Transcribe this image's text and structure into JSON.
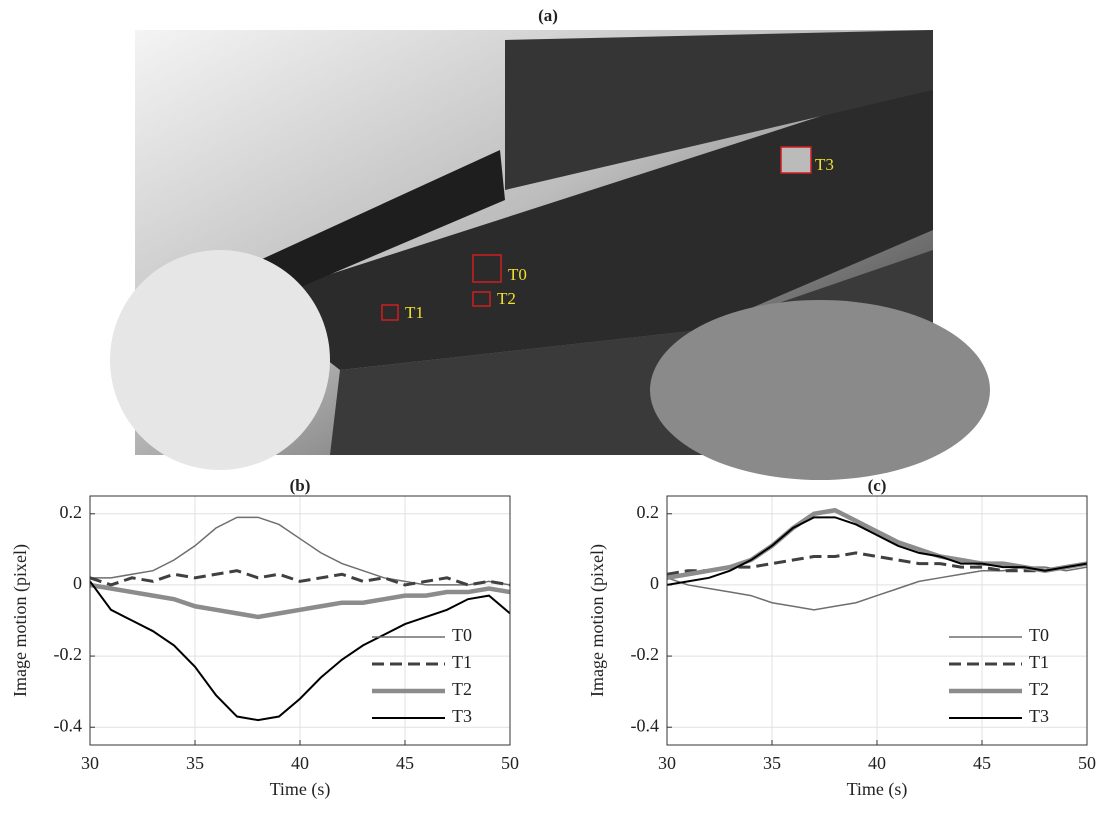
{
  "photo": {
    "title": "(a)",
    "targets": [
      "T0",
      "T1",
      "T2",
      "T3"
    ]
  },
  "chart_data": [
    {
      "type": "line",
      "title": "(b)",
      "xlabel": "Time (s)",
      "ylabel": "Image motion (pixel)",
      "x": [
        30,
        31,
        32,
        33,
        34,
        35,
        36,
        37,
        38,
        39,
        40,
        41,
        42,
        43,
        44,
        45,
        46,
        47,
        48,
        49,
        50
      ],
      "xlim": [
        30,
        50
      ],
      "xticks": [
        30,
        35,
        40,
        45,
        50
      ],
      "ylim": [
        -0.45,
        0.25
      ],
      "yticks": [
        -0.4,
        -0.2,
        0,
        0.2
      ],
      "grid": true,
      "legend": "lower right",
      "series": [
        {
          "name": "T0",
          "color": "#6e6e6e",
          "width": 1.5,
          "dash": false,
          "values": [
            0.02,
            0.02,
            0.03,
            0.04,
            0.07,
            0.11,
            0.16,
            0.19,
            0.19,
            0.17,
            0.13,
            0.09,
            0.06,
            0.04,
            0.02,
            0.01,
            0,
            0,
            0,
            0.01,
            0
          ]
        },
        {
          "name": "T1",
          "color": "#404040",
          "width": 3,
          "dash": true,
          "values": [
            0.02,
            0,
            0.02,
            0.01,
            0.03,
            0.02,
            0.03,
            0.04,
            0.02,
            0.03,
            0.01,
            0.02,
            0.03,
            0.01,
            0.02,
            0,
            0.01,
            0.02,
            0,
            0.01,
            0
          ]
        },
        {
          "name": "T2",
          "color": "#8c8c8c",
          "width": 4.5,
          "dash": false,
          "values": [
            0,
            -0.01,
            -0.02,
            -0.03,
            -0.04,
            -0.06,
            -0.07,
            -0.08,
            -0.09,
            -0.08,
            -0.07,
            -0.06,
            -0.05,
            -0.05,
            -0.04,
            -0.03,
            -0.03,
            -0.02,
            -0.02,
            -0.01,
            -0.02
          ]
        },
        {
          "name": "T3",
          "color": "#000000",
          "width": 2,
          "dash": false,
          "values": [
            0.01,
            -0.07,
            -0.1,
            -0.13,
            -0.17,
            -0.23,
            -0.31,
            -0.37,
            -0.38,
            -0.37,
            -0.32,
            -0.26,
            -0.21,
            -0.17,
            -0.14,
            -0.11,
            -0.09,
            -0.07,
            -0.04,
            -0.03,
            -0.08
          ]
        }
      ]
    },
    {
      "type": "line",
      "title": "(c)",
      "xlabel": "Time (s)",
      "ylabel": "Image motion (pixel)",
      "x": [
        30,
        31,
        32,
        33,
        34,
        35,
        36,
        37,
        38,
        39,
        40,
        41,
        42,
        43,
        44,
        45,
        46,
        47,
        48,
        49,
        50
      ],
      "xlim": [
        30,
        50
      ],
      "xticks": [
        30,
        35,
        40,
        45,
        50
      ],
      "ylim": [
        -0.45,
        0.25
      ],
      "yticks": [
        -0.4,
        -0.2,
        0,
        0.2
      ],
      "grid": true,
      "legend": "lower right",
      "series": [
        {
          "name": "T0",
          "color": "#6e6e6e",
          "width": 1.5,
          "dash": false,
          "values": [
            0.02,
            0,
            -0.01,
            -0.02,
            -0.03,
            -0.05,
            -0.06,
            -0.07,
            -0.06,
            -0.05,
            -0.03,
            -0.01,
            0.01,
            0.02,
            0.03,
            0.04,
            0.04,
            0.05,
            0.05,
            0.04,
            0.05
          ]
        },
        {
          "name": "T1",
          "color": "#404040",
          "width": 3,
          "dash": true,
          "values": [
            0.03,
            0.04,
            0.04,
            0.05,
            0.05,
            0.06,
            0.07,
            0.08,
            0.08,
            0.09,
            0.08,
            0.07,
            0.06,
            0.06,
            0.05,
            0.05,
            0.04,
            0.04,
            0.04,
            0.05,
            0.06
          ]
        },
        {
          "name": "T2",
          "color": "#8c8c8c",
          "width": 4.5,
          "dash": false,
          "values": [
            0.02,
            0.03,
            0.04,
            0.05,
            0.07,
            0.11,
            0.16,
            0.2,
            0.21,
            0.18,
            0.15,
            0.12,
            0.1,
            0.08,
            0.07,
            0.06,
            0.06,
            0.05,
            0.04,
            0.05,
            0.06
          ]
        },
        {
          "name": "T3",
          "color": "#000000",
          "width": 2,
          "dash": false,
          "values": [
            0,
            0.01,
            0.02,
            0.04,
            0.07,
            0.11,
            0.16,
            0.19,
            0.19,
            0.17,
            0.14,
            0.11,
            0.09,
            0.08,
            0.06,
            0.06,
            0.05,
            0.05,
            0.04,
            0.05,
            0.06
          ]
        }
      ]
    }
  ]
}
